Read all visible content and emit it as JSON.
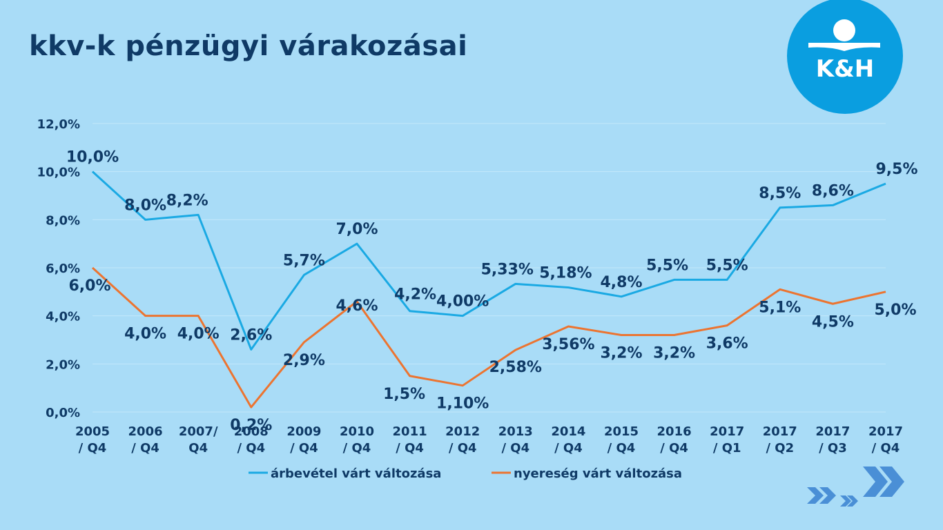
{
  "title": "kkv-k pénzügyi várakozásai",
  "logo_text": "K&H",
  "chart_data": {
    "type": "line",
    "ylim": [
      0,
      12
    ],
    "yticks": [
      0,
      2,
      4,
      6,
      8,
      10,
      12
    ],
    "ytick_labels": [
      "0,0%",
      "2,0%",
      "4,0%",
      "6,0%",
      "8,0%",
      "10,0%",
      "12,0%"
    ],
    "categories": [
      [
        "2005",
        "/ Q4"
      ],
      [
        "2006",
        "/ Q4"
      ],
      [
        "2007/",
        "Q4"
      ],
      [
        "2008",
        "/ Q4"
      ],
      [
        "2009",
        "/ Q4"
      ],
      [
        "2010",
        "/ Q4"
      ],
      [
        "2011",
        "/ Q4"
      ],
      [
        "2012",
        "/ Q4"
      ],
      [
        "2013",
        "/ Q4"
      ],
      [
        "2014",
        "/ Q4"
      ],
      [
        "2015",
        "/ Q4"
      ],
      [
        "2016",
        "/ Q4"
      ],
      [
        "2017",
        "/ Q1"
      ],
      [
        "2017",
        "/ Q2"
      ],
      [
        "2017",
        "/ Q3"
      ],
      [
        "2017",
        "/ Q4"
      ]
    ],
    "grid": true,
    "legend_position": "bottom",
    "series": [
      {
        "name": "árbevétel várt változása",
        "color": "#1aa9e3",
        "values": [
          10.0,
          8.0,
          8.2,
          2.6,
          5.7,
          7.0,
          4.2,
          4.0,
          5.33,
          5.18,
          4.8,
          5.5,
          5.5,
          8.5,
          8.6,
          9.5
        ],
        "labels": [
          "10,0%",
          "8,0%",
          "8,2%",
          "2,6%",
          "5,7%",
          "7,0%",
          "4,2%",
          "4,00%",
          "5,33%",
          "5,18%",
          "4,8%",
          "5,5%",
          "5,5%",
          "8,5%",
          "8,6%",
          "9,5%"
        ]
      },
      {
        "name": "nyereség várt változása",
        "color": "#ec7430",
        "values": [
          6.0,
          4.0,
          4.0,
          0.2,
          2.9,
          4.6,
          1.5,
          1.1,
          2.58,
          3.56,
          3.2,
          3.2,
          3.6,
          5.1,
          4.5,
          5.0
        ],
        "labels": [
          "6,0%",
          "4,0%",
          "4,0%",
          "0,2%",
          "2,9%",
          "4,6%",
          "1,5%",
          "1,10%",
          "2,58%",
          "3,56%",
          "3,2%",
          "3,2%",
          "3,6%",
          "5,1%",
          "4,5%",
          "5,0%"
        ]
      }
    ]
  },
  "colors": {
    "background": "#a9dcf7",
    "title": "#0f3a66",
    "axis_text": "#0f3a66",
    "logo_circle": "#0a9ee0",
    "chevrons": "#4a8fd6"
  }
}
